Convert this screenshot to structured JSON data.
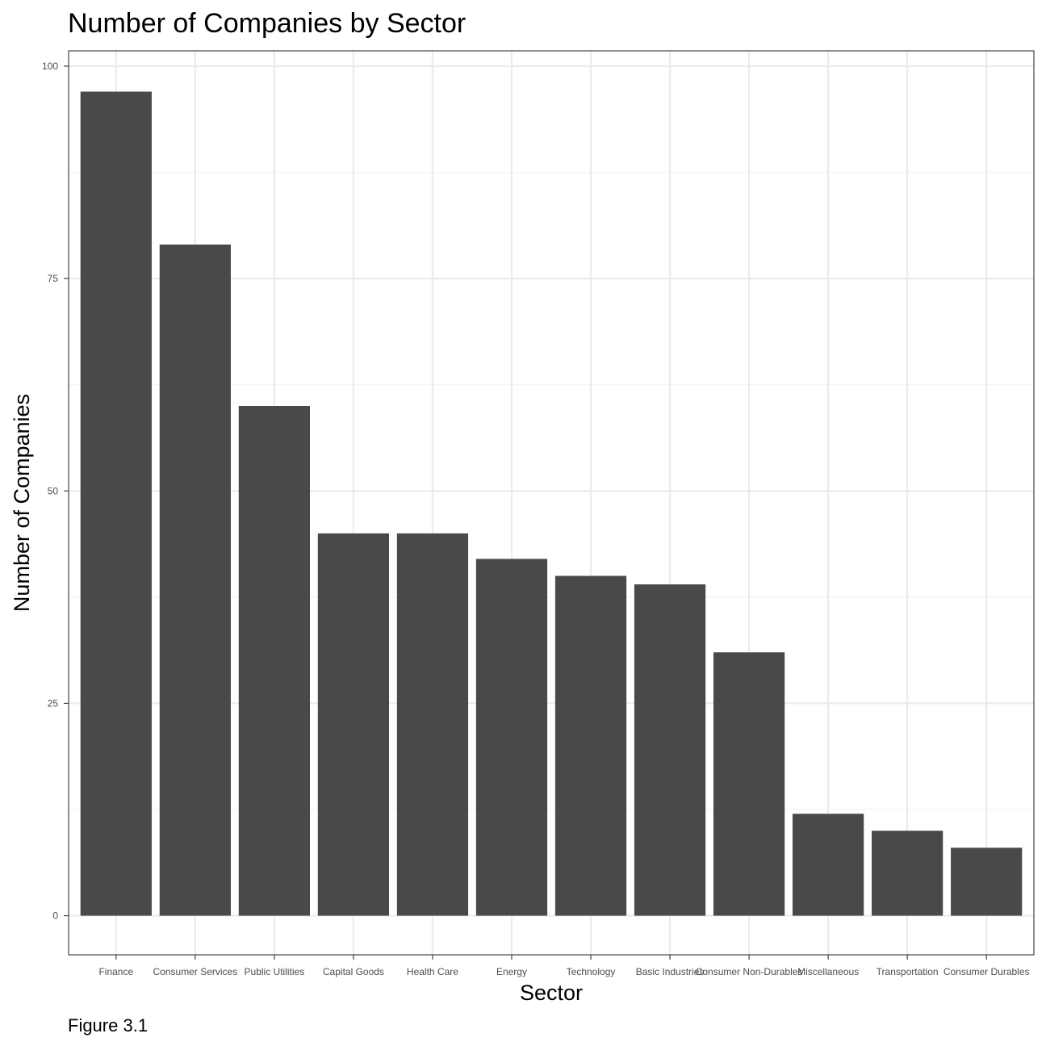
{
  "chart_data": {
    "type": "bar",
    "title": "Number of Companies by Sector",
    "xlabel": "Sector",
    "ylabel": "Number of Companies",
    "caption": "Figure 3.1",
    "categories": [
      "Finance",
      "Consumer Services",
      "Public Utilities",
      "Capital Goods",
      "Health Care",
      "Energy",
      "Technology",
      "Basic Industries",
      "Consumer Non-Durables",
      "Miscellaneous",
      "Transportation",
      "Consumer Durables"
    ],
    "values": [
      97,
      79,
      60,
      45,
      45,
      42,
      40,
      39,
      31,
      12,
      10,
      8
    ],
    "ylim": [
      -4.6,
      101.8
    ],
    "yticks": [
      0,
      25,
      50,
      75,
      100
    ],
    "yticks_minor": [
      12.5,
      37.5,
      62.5,
      87.5
    ],
    "grid": true,
    "theme": "bw",
    "colors": {
      "bar": "#494949",
      "grid_major": "#ebebeb",
      "grid_minor": "#f2f2f2",
      "panel_border": "#333333",
      "axis_tick": "#333333"
    }
  }
}
